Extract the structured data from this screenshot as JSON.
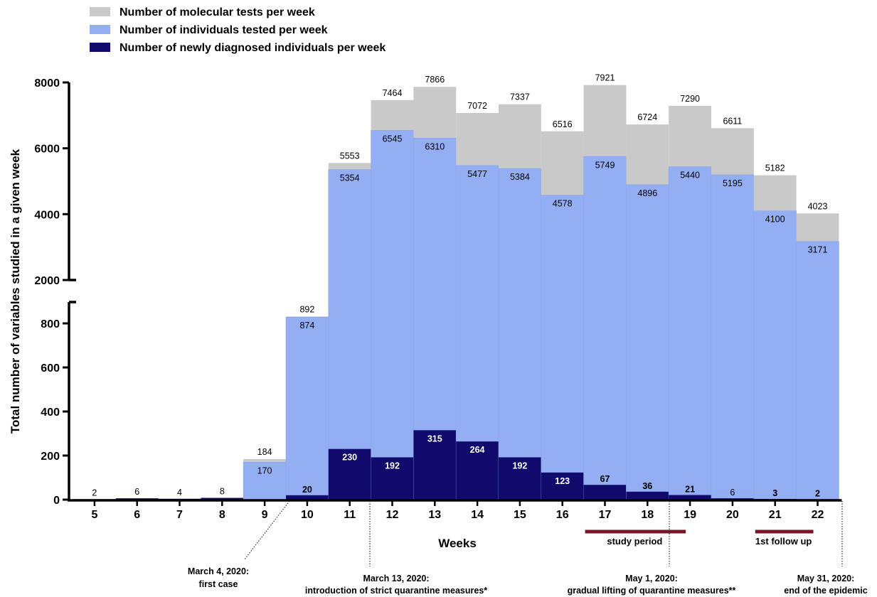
{
  "chart_data": {
    "type": "bar",
    "xlabel": "Weeks",
    "ylabel": "Total number of variables studied in a given week",
    "categories": [
      "5",
      "6",
      "7",
      "8",
      "9",
      "10",
      "11",
      "12",
      "13",
      "14",
      "15",
      "16",
      "17",
      "18",
      "19",
      "20",
      "21",
      "22"
    ],
    "series": [
      {
        "name": "Number of molecular tests per week",
        "values": [
          null,
          null,
          null,
          null,
          184,
          892,
          5553,
          7464,
          7866,
          7072,
          7337,
          6516,
          7921,
          6724,
          7290,
          6611,
          5182,
          4023
        ]
      },
      {
        "name": "Number of individuals tested per week",
        "values": [
          null,
          null,
          null,
          null,
          170,
          874,
          5354,
          6545,
          6310,
          5477,
          5384,
          4578,
          5749,
          4896,
          5440,
          5195,
          4100,
          3171
        ]
      },
      {
        "name": "Number of newly diagnosed individuals per week",
        "values": [
          2,
          6,
          4,
          8,
          null,
          20,
          230,
          192,
          315,
          264,
          192,
          123,
          67,
          36,
          21,
          6,
          3,
          2
        ]
      }
    ],
    "y_axis": {
      "broken": true,
      "lower_segment": {
        "range": [
          0,
          800
        ],
        "ticks": [
          "0",
          "200",
          "400",
          "600",
          "800"
        ]
      },
      "upper_segment": {
        "range": [
          2000,
          8000
        ],
        "ticks": [
          "2000",
          "4000",
          "6000",
          "8000"
        ]
      }
    },
    "colors": {
      "tests": "#c9c9c9",
      "individuals": "#93aef2",
      "diagnosed": "#0f0a6b",
      "period_bar": "#7a1426"
    },
    "legend_position": "top-left",
    "periods": [
      {
        "label": "study period",
        "from_week": 17,
        "to_week": 18.9
      },
      {
        "label": "1st follow up",
        "from_week": 21,
        "to_week": 21.9
      }
    ],
    "annotations": [
      {
        "line1": "March 4, 2020:",
        "line2": "first case",
        "week": 9.7
      },
      {
        "line1": "March 13, 2020:",
        "line2": "introduction of strict quarantine measures*",
        "week": 11.5
      },
      {
        "line1": "May 1, 2020:",
        "line2": "gradual lifting of quarantine measures**",
        "week": 18.5
      },
      {
        "line1": "May 31, 2020:",
        "line2": "end of the epidemic",
        "week": 22.5
      }
    ]
  }
}
